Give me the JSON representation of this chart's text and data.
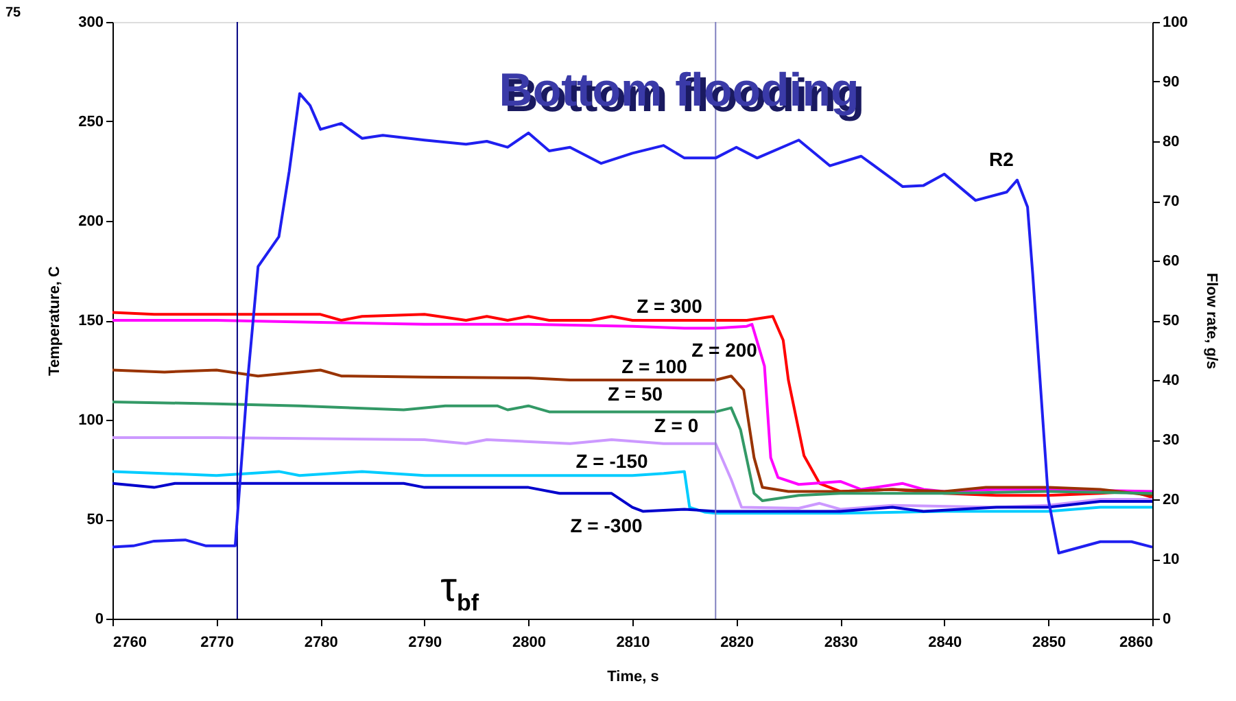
{
  "chart_data": {
    "type": "line",
    "title": "Bottom flooding",
    "xlabel": "Time, s",
    "ylabel": "Temperature, C",
    "y2label": "Flow rate, g/s",
    "xlim": [
      2760,
      2860
    ],
    "xticks": [
      2760,
      2770,
      2780,
      2790,
      2800,
      2810,
      2820,
      2830,
      2840,
      2850,
      2860
    ],
    "ylim": [
      0,
      300
    ],
    "yticks": [
      0,
      50,
      100,
      150,
      200,
      250,
      300
    ],
    "y2lim": [
      0,
      100
    ],
    "y2ticks": [
      0,
      10,
      20,
      30,
      40,
      50,
      60,
      70,
      80,
      90,
      100
    ],
    "grid": false,
    "marker": "none",
    "line_style": "solid",
    "series": [
      {
        "name": "R2",
        "color": "#1f1ff0",
        "axis": "y2",
        "x": [
          2760,
          2762,
          2764,
          2767,
          2769,
          2771.8,
          2773,
          2774,
          2776,
          2777,
          2778,
          2779,
          2780,
          2782,
          2784,
          2786,
          2790,
          2794,
          2796,
          2798,
          2800,
          2802,
          2804,
          2807,
          2810,
          2813,
          2815,
          2818,
          2820,
          2822,
          2826,
          2829,
          2832,
          2836,
          2838,
          2840,
          2843,
          2846,
          2847,
          2848,
          2848.5,
          2850,
          2851,
          2855,
          2858,
          2860
        ],
        "values": [
          12,
          12.2,
          13,
          13.2,
          12.2,
          12.2,
          40,
          59,
          64,
          75,
          88,
          86,
          82,
          83,
          80.5,
          81,
          80.2,
          79.5,
          80,
          79,
          81.4,
          78.4,
          79,
          76.3,
          78,
          79.3,
          77.2,
          77.2,
          79,
          77.2,
          80.2,
          75.9,
          77.5,
          72.4,
          72.6,
          74.5,
          70.1,
          71.5,
          73.5,
          69,
          57.7,
          20,
          11,
          12.9,
          12.9,
          12
        ]
      },
      {
        "name": "Z = 300",
        "color": "#ff0000",
        "x": [
          2760,
          2764,
          2770,
          2780,
          2782,
          2784,
          2790,
          2794,
          2796,
          2798,
          2800,
          2802,
          2806,
          2808,
          2810,
          2818,
          2821,
          2823.5,
          2824.5,
          2825,
          2826.5,
          2828,
          2830,
          2835,
          2840,
          2845,
          2850,
          2855,
          2858,
          2860
        ],
        "values": [
          154,
          153,
          153,
          153,
          150,
          152,
          153,
          150,
          152,
          150,
          152,
          150,
          150,
          152,
          150,
          150,
          150,
          152,
          140,
          120,
          82,
          68,
          64,
          65,
          63,
          62,
          62,
          63,
          64,
          61
        ]
      },
      {
        "name": "Z = 200",
        "color": "#ff00ff",
        "x": [
          2760,
          2770,
          2780,
          2790,
          2800,
          2810,
          2815,
          2818,
          2821,
          2821.5,
          2822.7,
          2823.3,
          2824,
          2826,
          2830,
          2832,
          2836,
          2838,
          2840,
          2845,
          2850,
          2860
        ],
        "values": [
          150,
          150,
          149,
          148,
          148,
          147,
          146,
          146,
          147,
          148,
          127,
          81,
          71,
          67.5,
          69,
          65,
          68,
          65,
          64,
          65,
          65,
          64
        ]
      },
      {
        "name": "Z = 100",
        "color": "#993300",
        "x": [
          2760,
          2765,
          2770,
          2774,
          2780,
          2782,
          2790,
          2800,
          2804,
          2818,
          2819.5,
          2820.7,
          2821.7,
          2822.5,
          2825,
          2830,
          2835,
          2840,
          2844,
          2850,
          2855,
          2860
        ],
        "values": [
          125,
          124,
          125,
          122,
          125,
          122,
          121.5,
          121,
          120,
          120,
          122,
          115,
          81,
          66,
          64,
          64,
          65,
          64,
          66,
          66,
          65,
          62
        ]
      },
      {
        "name": "Z = 50",
        "color": "#339966",
        "x": [
          2760,
          2770,
          2778,
          2788,
          2792,
          2797,
          2798,
          2800,
          2802,
          2818,
          2819.5,
          2820.4,
          2821.7,
          2822.5,
          2826,
          2830,
          2840,
          2850,
          2860
        ],
        "values": [
          109,
          108,
          107,
          105,
          107,
          107,
          105,
          107,
          104,
          104,
          106,
          95,
          63,
          59.3,
          62,
          63,
          63,
          64,
          63
        ]
      },
      {
        "name": "Z = 0",
        "color": "#cc99ff",
        "x": [
          2760,
          2770,
          2790,
          2794,
          2796,
          2804,
          2808,
          2813,
          2818,
          2819.5,
          2820.5,
          2826,
          2828,
          2830,
          2835,
          2845,
          2850,
          2855,
          2860
        ],
        "values": [
          91,
          91,
          90,
          88,
          90,
          88,
          90,
          88,
          88,
          70,
          56,
          55.5,
          58,
          55,
          57,
          56,
          57,
          60,
          60
        ]
      },
      {
        "name": "Z = -150",
        "color": "#00ccff",
        "x": [
          2760,
          2770,
          2776,
          2778,
          2784,
          2790,
          2810,
          2813,
          2815,
          2815.5,
          2817,
          2818,
          2830,
          2840,
          2850,
          2855,
          2860
        ],
        "values": [
          74,
          72,
          74,
          72,
          74,
          72,
          72,
          73,
          74,
          56,
          53.5,
          53,
          53,
          54,
          54,
          56,
          56
        ]
      },
      {
        "name": "Z = -300",
        "color": "#0000cc",
        "x": [
          2760,
          2764,
          2766,
          2788,
          2790,
          2800,
          2803,
          2808,
          2810,
          2811,
          2815,
          2818,
          2830,
          2835,
          2838,
          2845,
          2850,
          2855,
          2860
        ],
        "values": [
          68,
          66,
          68,
          68,
          66,
          66,
          63,
          63,
          56,
          54,
          55,
          54,
          54,
          56,
          54,
          56,
          56,
          59,
          59
        ]
      }
    ],
    "ref_lines": [
      {
        "axis": "x",
        "value": 2772,
        "color": "#000080"
      },
      {
        "axis": "x",
        "value": 2818,
        "color": "#8080c0"
      }
    ],
    "annotations": [
      "τ$_{bf}$",
      "75"
    ]
  }
}
